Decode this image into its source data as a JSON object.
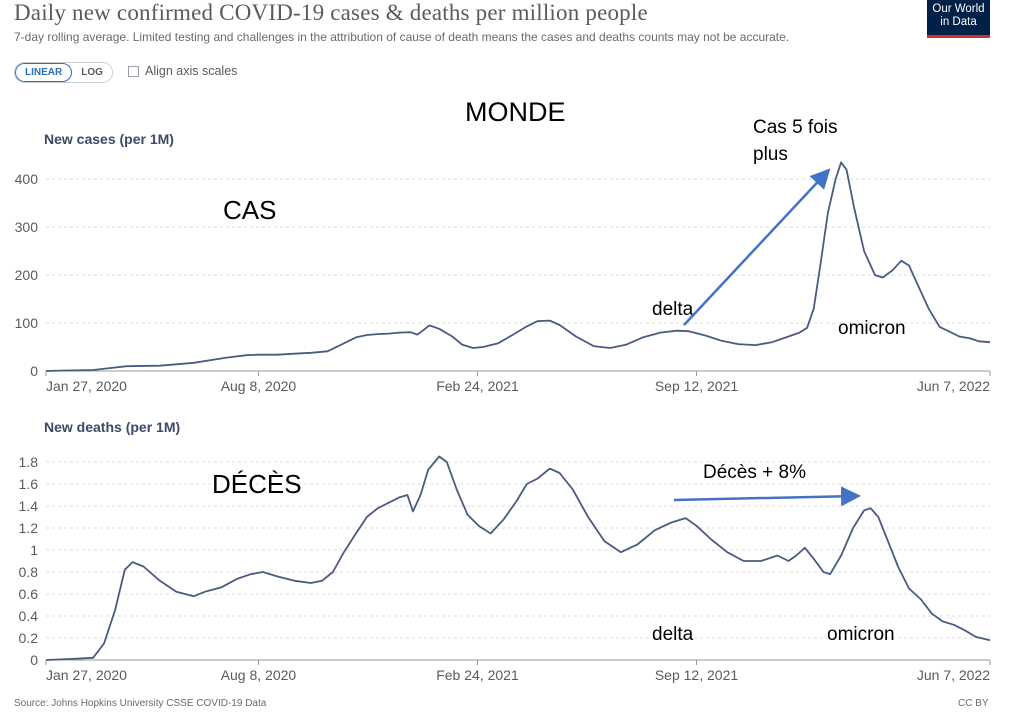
{
  "header": {
    "title": "Daily new confirmed COVID-19 cases & deaths per million people",
    "subtitle": "7-day rolling average. Limited testing and challenges in the attribution of cause of death means the cases and deaths counts may not be accurate.",
    "logo_line1": "Our World",
    "logo_line2": "in Data"
  },
  "controls": {
    "linear_label": "LINEAR",
    "log_label": "LOG",
    "align_label": "Align axis scales",
    "active_scale": "LINEAR"
  },
  "footer": {
    "source": "Source: Johns Hopkins University CSSE COVID-19 Data",
    "license": "CC BY"
  },
  "colors": {
    "line": "#4a5b80",
    "arrow": "#4472c4",
    "grid": "#dddddd",
    "text": "#5b5b5b",
    "ylabel": "#3c4a66"
  },
  "annotations": {
    "monde": "MONDE",
    "cas": "CAS",
    "cas5": "Cas 5 fois",
    "plus": "plus",
    "delta_top": "delta",
    "omicron_top": "omicron",
    "deces": "DÉCÈS",
    "deces8": "Décès + 8%",
    "delta_bottom": "delta",
    "omicron_bottom": "omicron"
  },
  "chart_data": [
    {
      "type": "line",
      "ylabel": "New cases (per 1M)",
      "ylim": [
        0,
        440
      ],
      "yticks": [
        "0",
        "100",
        "200",
        "300",
        "400"
      ],
      "ytick_values": [
        0,
        100,
        200,
        300,
        400
      ],
      "xlim": [
        "2020-01-27",
        "2022-06-07"
      ],
      "xticks": [
        "Jan 27, 2020",
        "Aug 8, 2020",
        "Feb 24, 2021",
        "Sep 12, 2021",
        "Jun 7, 2022"
      ],
      "xtick_dates": [
        "2020-01-27",
        "2020-08-08",
        "2021-02-24",
        "2021-09-12",
        "2022-06-07"
      ],
      "grid": true,
      "points": [
        [
          "2020-01-27",
          0
        ],
        [
          "2020-02-15",
          1
        ],
        [
          "2020-03-10",
          2
        ],
        [
          "2020-03-25",
          6
        ],
        [
          "2020-04-10",
          10
        ],
        [
          "2020-05-10",
          11
        ],
        [
          "2020-06-10",
          17
        ],
        [
          "2020-07-10",
          28
        ],
        [
          "2020-07-28",
          33
        ],
        [
          "2020-08-08",
          34
        ],
        [
          "2020-08-25",
          34
        ],
        [
          "2020-09-10",
          36
        ],
        [
          "2020-09-25",
          38
        ],
        [
          "2020-10-10",
          41
        ],
        [
          "2020-10-20",
          52
        ],
        [
          "2020-11-05",
          70
        ],
        [
          "2020-11-15",
          75
        ],
        [
          "2020-11-25",
          77
        ],
        [
          "2020-12-05",
          78
        ],
        [
          "2020-12-15",
          80
        ],
        [
          "2020-12-25",
          81
        ],
        [
          "2020-12-31",
          76
        ],
        [
          "2021-01-05",
          84
        ],
        [
          "2021-01-11",
          95
        ],
        [
          "2021-01-20",
          88
        ],
        [
          "2021-02-01",
          72
        ],
        [
          "2021-02-10",
          55
        ],
        [
          "2021-02-20",
          48
        ],
        [
          "2021-03-01",
          50
        ],
        [
          "2021-03-15",
          58
        ],
        [
          "2021-03-28",
          75
        ],
        [
          "2021-04-10",
          93
        ],
        [
          "2021-04-20",
          104
        ],
        [
          "2021-05-01",
          105
        ],
        [
          "2021-05-10",
          96
        ],
        [
          "2021-05-25",
          72
        ],
        [
          "2021-06-10",
          52
        ],
        [
          "2021-06-25",
          48
        ],
        [
          "2021-07-10",
          55
        ],
        [
          "2021-07-25",
          70
        ],
        [
          "2021-08-10",
          80
        ],
        [
          "2021-08-25",
          84
        ],
        [
          "2021-09-05",
          83
        ],
        [
          "2021-09-20",
          74
        ],
        [
          "2021-10-05",
          63
        ],
        [
          "2021-10-20",
          56
        ],
        [
          "2021-11-05",
          54
        ],
        [
          "2021-11-20",
          60
        ],
        [
          "2021-12-05",
          72
        ],
        [
          "2021-12-15",
          80
        ],
        [
          "2021-12-22",
          90
        ],
        [
          "2021-12-28",
          130
        ],
        [
          "2022-01-03",
          220
        ],
        [
          "2022-01-10",
          330
        ],
        [
          "2022-01-17",
          400
        ],
        [
          "2022-01-22",
          435
        ],
        [
          "2022-01-27",
          420
        ],
        [
          "2022-02-03",
          340
        ],
        [
          "2022-02-12",
          250
        ],
        [
          "2022-02-22",
          200
        ],
        [
          "2022-03-01",
          195
        ],
        [
          "2022-03-10",
          210
        ],
        [
          "2022-03-18",
          230
        ],
        [
          "2022-03-25",
          220
        ],
        [
          "2022-04-03",
          175
        ],
        [
          "2022-04-12",
          130
        ],
        [
          "2022-04-22",
          92
        ],
        [
          "2022-05-01",
          82
        ],
        [
          "2022-05-10",
          72
        ],
        [
          "2022-05-20",
          68
        ],
        [
          "2022-05-28",
          62
        ],
        [
          "2022-06-07",
          60
        ]
      ]
    },
    {
      "type": "line",
      "ylabel": "New deaths (per 1M)",
      "ylim": [
        0,
        1.9
      ],
      "yticks": [
        "0",
        "0.2",
        "0.4",
        "0.6",
        "0.8",
        "1",
        "1.2",
        "1.4",
        "1.6",
        "1.8"
      ],
      "ytick_values": [
        0,
        0.2,
        0.4,
        0.6,
        0.8,
        1,
        1.2,
        1.4,
        1.6,
        1.8
      ],
      "xlim": [
        "2020-01-27",
        "2022-06-07"
      ],
      "xticks": [
        "Jan 27, 2020",
        "Aug 8, 2020",
        "Feb 24, 2021",
        "Sep 12, 2021",
        "Jun 7, 2022"
      ],
      "xtick_dates": [
        "2020-01-27",
        "2020-08-08",
        "2021-02-24",
        "2021-09-12",
        "2022-06-07"
      ],
      "grid": true,
      "points": [
        [
          "2020-01-27",
          0
        ],
        [
          "2020-02-20",
          0.01
        ],
        [
          "2020-03-10",
          0.02
        ],
        [
          "2020-03-20",
          0.15
        ],
        [
          "2020-03-30",
          0.45
        ],
        [
          "2020-04-08",
          0.82
        ],
        [
          "2020-04-15",
          0.89
        ],
        [
          "2020-04-25",
          0.85
        ],
        [
          "2020-05-10",
          0.72
        ],
        [
          "2020-05-25",
          0.62
        ],
        [
          "2020-06-10",
          0.58
        ],
        [
          "2020-06-20",
          0.62
        ],
        [
          "2020-07-05",
          0.66
        ],
        [
          "2020-07-20",
          0.74
        ],
        [
          "2020-08-01",
          0.78
        ],
        [
          "2020-08-12",
          0.8
        ],
        [
          "2020-08-25",
          0.76
        ],
        [
          "2020-09-10",
          0.72
        ],
        [
          "2020-09-25",
          0.7
        ],
        [
          "2020-10-05",
          0.72
        ],
        [
          "2020-10-15",
          0.8
        ],
        [
          "2020-10-25",
          0.98
        ],
        [
          "2020-11-05",
          1.15
        ],
        [
          "2020-11-15",
          1.3
        ],
        [
          "2020-11-25",
          1.38
        ],
        [
          "2020-12-05",
          1.43
        ],
        [
          "2020-12-15",
          1.48
        ],
        [
          "2020-12-22",
          1.5
        ],
        [
          "2020-12-27",
          1.35
        ],
        [
          "2021-01-03",
          1.5
        ],
        [
          "2021-01-10",
          1.73
        ],
        [
          "2021-01-20",
          1.85
        ],
        [
          "2021-01-27",
          1.8
        ],
        [
          "2021-02-05",
          1.55
        ],
        [
          "2021-02-15",
          1.32
        ],
        [
          "2021-02-25",
          1.22
        ],
        [
          "2021-03-08",
          1.15
        ],
        [
          "2021-03-20",
          1.28
        ],
        [
          "2021-04-01",
          1.45
        ],
        [
          "2021-04-10",
          1.6
        ],
        [
          "2021-04-20",
          1.65
        ],
        [
          "2021-05-01",
          1.74
        ],
        [
          "2021-05-10",
          1.7
        ],
        [
          "2021-05-22",
          1.55
        ],
        [
          "2021-06-05",
          1.3
        ],
        [
          "2021-06-20",
          1.08
        ],
        [
          "2021-07-05",
          0.98
        ],
        [
          "2021-07-20",
          1.05
        ],
        [
          "2021-08-05",
          1.18
        ],
        [
          "2021-08-20",
          1.25
        ],
        [
          "2021-09-02",
          1.29
        ],
        [
          "2021-09-12",
          1.22
        ],
        [
          "2021-09-25",
          1.1
        ],
        [
          "2021-10-10",
          0.98
        ],
        [
          "2021-10-25",
          0.9
        ],
        [
          "2021-11-10",
          0.9
        ],
        [
          "2021-11-25",
          0.95
        ],
        [
          "2021-12-05",
          0.9
        ],
        [
          "2021-12-12",
          0.95
        ],
        [
          "2021-12-20",
          1.02
        ],
        [
          "2021-12-28",
          0.92
        ],
        [
          "2022-01-06",
          0.8
        ],
        [
          "2022-01-12",
          0.78
        ],
        [
          "2022-01-22",
          0.95
        ],
        [
          "2022-02-02",
          1.2
        ],
        [
          "2022-02-12",
          1.36
        ],
        [
          "2022-02-18",
          1.38
        ],
        [
          "2022-02-25",
          1.3
        ],
        [
          "2022-03-05",
          1.1
        ],
        [
          "2022-03-15",
          0.85
        ],
        [
          "2022-03-25",
          0.65
        ],
        [
          "2022-04-05",
          0.55
        ],
        [
          "2022-04-15",
          0.42
        ],
        [
          "2022-04-25",
          0.35
        ],
        [
          "2022-05-05",
          0.32
        ],
        [
          "2022-05-15",
          0.27
        ],
        [
          "2022-05-25",
          0.21
        ],
        [
          "2022-06-07",
          0.18
        ]
      ]
    }
  ]
}
